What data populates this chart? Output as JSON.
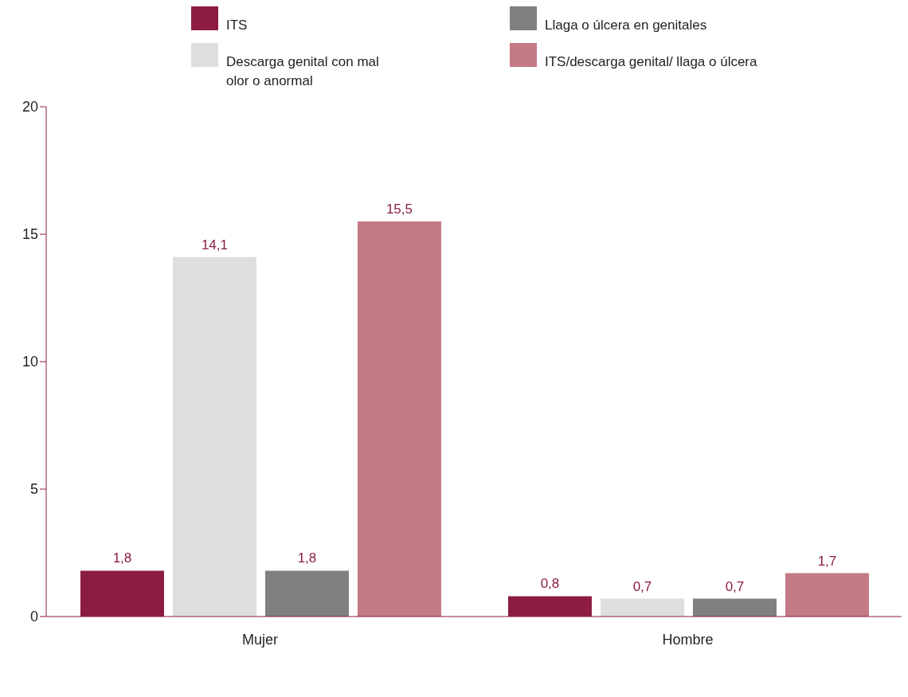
{
  "chart_data": {
    "type": "bar",
    "categories": [
      "Mujer",
      "Hombre"
    ],
    "series": [
      {
        "name": "ITS",
        "color": "#8c1d40",
        "values": [
          1.8,
          0.8
        ],
        "value_labels": [
          "1,8",
          "0,8"
        ]
      },
      {
        "name": "Descarga genital con mal olor o anormal",
        "color": "#dedede",
        "values": [
          14.1,
          0.7
        ],
        "value_labels": [
          "14,1",
          "0,7"
        ]
      },
      {
        "name": "Llaga o úlcera en genitales",
        "color": "#808080",
        "values": [
          1.8,
          0.7
        ],
        "value_labels": [
          "1,8",
          "0,7"
        ]
      },
      {
        "name": "ITS/descarga genital/ llaga o úlcera",
        "color": "#c27a84",
        "values": [
          15.5,
          1.7
        ],
        "value_labels": [
          "15,5",
          "1,7"
        ]
      }
    ],
    "ylim": [
      0,
      20
    ],
    "yticks": [
      0,
      5,
      10,
      15,
      20
    ],
    "legend": "top"
  }
}
